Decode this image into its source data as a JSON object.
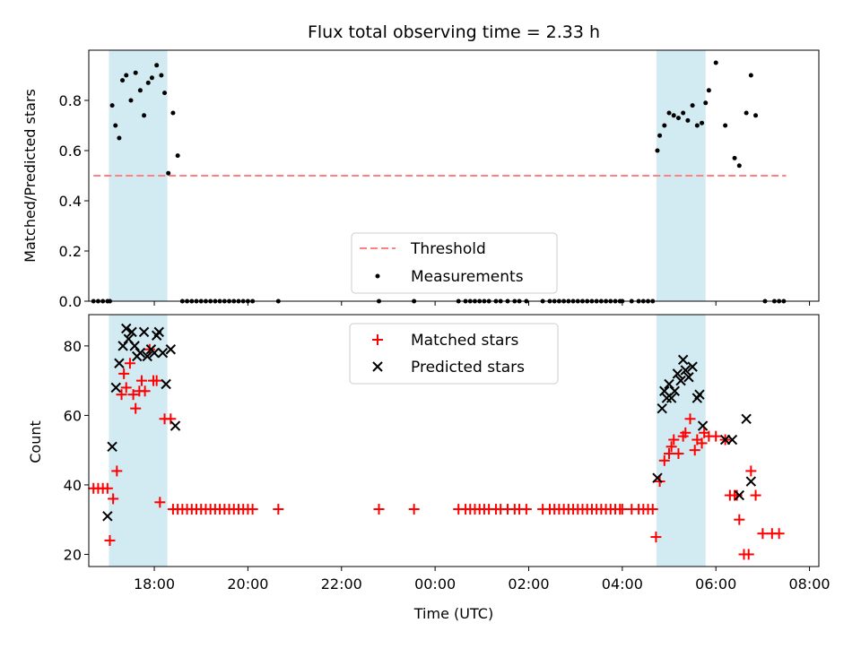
{
  "figure": {
    "title": "Flux total observing time = 2.33 h"
  },
  "chart_data": [
    {
      "type": "scatter",
      "panel": "top",
      "ylabel": "Matched/Predicted stars",
      "xlabel": "",
      "xlim": [
        16.6,
        32.2
      ],
      "ylim": [
        0,
        1.0
      ],
      "yticks": [
        0.0,
        0.2,
        0.4,
        0.6,
        0.8
      ],
      "ytick_labels": [
        "0.0",
        "0.2",
        "0.4",
        "0.6",
        "0.8"
      ],
      "highlight_regions": [
        [
          17.03,
          18.28
        ],
        [
          28.73,
          29.78
        ]
      ],
      "highlight_color": "#add8e6",
      "legend_position": "lower-center",
      "series": [
        {
          "name": "Threshold",
          "kind": "dashed-line",
          "color": "#ff8080",
          "x": [
            16.7,
            31.5
          ],
          "y": [
            0.5,
            0.5
          ]
        },
        {
          "name": "Measurements",
          "kind": "dot",
          "color": "#000000",
          "x": [
            16.7,
            16.8,
            16.9,
            17.0,
            17.05,
            17.1,
            17.17,
            17.25,
            17.32,
            17.4,
            17.5,
            17.6,
            17.7,
            17.78,
            17.87,
            17.95,
            18.05,
            18.15,
            18.22,
            18.3,
            18.4,
            18.5,
            18.6,
            18.7,
            18.8,
            18.9,
            19.0,
            19.1,
            19.2,
            19.3,
            19.4,
            19.5,
            19.6,
            19.7,
            19.8,
            19.9,
            20.0,
            20.1,
            20.65,
            22.8,
            23.55,
            24.5,
            24.65,
            24.75,
            24.85,
            24.95,
            25.05,
            25.15,
            25.3,
            25.4,
            25.55,
            25.7,
            25.8,
            25.95,
            26.3,
            26.45,
            26.55,
            26.65,
            26.75,
            26.85,
            26.95,
            27.05,
            27.15,
            27.25,
            27.35,
            27.45,
            27.55,
            27.65,
            27.75,
            27.85,
            27.95,
            28.0,
            28.2,
            28.35,
            28.45,
            28.55,
            28.65,
            28.75,
            28.8,
            28.9,
            29.0,
            29.1,
            29.2,
            29.3,
            29.4,
            29.5,
            29.6,
            29.7,
            29.78,
            29.85,
            30.0,
            30.2,
            30.4,
            30.5,
            30.65,
            30.75,
            30.85,
            31.05,
            31.25,
            31.35,
            31.45
          ],
          "y": [
            0.0,
            0.0,
            0.0,
            0.0,
            0.0,
            0.78,
            0.7,
            0.65,
            0.88,
            0.9,
            0.8,
            0.91,
            0.84,
            0.74,
            0.87,
            0.89,
            0.94,
            0.9,
            0.83,
            0.51,
            0.75,
            0.58,
            0.0,
            0.0,
            0.0,
            0.0,
            0.0,
            0.0,
            0.0,
            0.0,
            0.0,
            0.0,
            0.0,
            0.0,
            0.0,
            0.0,
            0.0,
            0.0,
            0.0,
            0.0,
            0.0,
            0.0,
            0.0,
            0.0,
            0.0,
            0.0,
            0.0,
            0.0,
            0.0,
            0.0,
            0.0,
            0.0,
            0.0,
            0.0,
            0.0,
            0.0,
            0.0,
            0.0,
            0.0,
            0.0,
            0.0,
            0.0,
            0.0,
            0.0,
            0.0,
            0.0,
            0.0,
            0.0,
            0.0,
            0.0,
            0.0,
            0.0,
            0.0,
            0.0,
            0.0,
            0.0,
            0.0,
            0.6,
            0.66,
            0.7,
            0.75,
            0.74,
            0.73,
            0.75,
            0.72,
            0.78,
            0.7,
            0.71,
            0.79,
            0.84,
            0.95,
            0.7,
            0.57,
            0.54,
            0.75,
            0.9,
            0.74,
            0.0,
            0.0,
            0.0,
            0.0
          ]
        }
      ]
    },
    {
      "type": "scatter",
      "panel": "bottom",
      "xlabel": "Time (UTC)",
      "ylabel": "Count",
      "xlim": [
        16.6,
        32.2
      ],
      "ylim": [
        16.5,
        89
      ],
      "yticks": [
        20,
        40,
        60,
        80
      ],
      "ytick_labels": [
        "20",
        "40",
        "60",
        "80"
      ],
      "xticks": [
        18,
        20,
        22,
        24,
        26,
        28,
        30,
        32
      ],
      "xtick_labels": [
        "18:00",
        "20:00",
        "22:00",
        "00:00",
        "02:00",
        "04:00",
        "06:00",
        "08:00"
      ],
      "highlight_regions": [
        [
          17.03,
          18.28
        ],
        [
          28.73,
          29.78
        ]
      ],
      "highlight_color": "#add8e6",
      "legend_position": "upper-center",
      "series": [
        {
          "name": "Matched stars",
          "marker": "plus",
          "color": "#ff0000",
          "x": [
            16.7,
            16.8,
            16.9,
            17.0,
            17.05,
            17.12,
            17.2,
            17.3,
            17.35,
            17.4,
            17.48,
            17.55,
            17.6,
            17.68,
            17.73,
            17.8,
            17.9,
            17.98,
            18.05,
            18.12,
            18.22,
            18.35,
            18.4,
            18.5,
            18.6,
            18.7,
            18.8,
            18.9,
            19.0,
            19.1,
            19.2,
            19.3,
            19.4,
            19.5,
            19.6,
            19.7,
            19.8,
            19.9,
            20.0,
            20.1,
            20.65,
            22.8,
            23.55,
            24.5,
            24.65,
            24.75,
            24.85,
            24.95,
            25.05,
            25.15,
            25.3,
            25.4,
            25.55,
            25.7,
            25.8,
            25.95,
            26.3,
            26.45,
            26.55,
            26.65,
            26.75,
            26.85,
            26.95,
            27.05,
            27.15,
            27.25,
            27.35,
            27.45,
            27.55,
            27.65,
            27.75,
            27.85,
            27.95,
            28.0,
            28.2,
            28.35,
            28.45,
            28.55,
            28.65,
            28.72,
            28.8,
            28.9,
            29.0,
            29.05,
            29.1,
            29.2,
            29.3,
            29.35,
            29.45,
            29.55,
            29.6,
            29.7,
            29.75,
            29.85,
            30.0,
            30.2,
            30.3,
            30.4,
            30.45,
            30.5,
            30.6,
            30.7,
            30.75,
            30.85,
            31.0,
            31.2,
            31.35
          ],
          "y": [
            39,
            39,
            39,
            39,
            24,
            36,
            44,
            66,
            72,
            68,
            75,
            66,
            62,
            67,
            70,
            67,
            79,
            70,
            70,
            35,
            59,
            59,
            33,
            33,
            33,
            33,
            33,
            33,
            33,
            33,
            33,
            33,
            33,
            33,
            33,
            33,
            33,
            33,
            33,
            33,
            33,
            33,
            33,
            33,
            33,
            33,
            33,
            33,
            33,
            33,
            33,
            33,
            33,
            33,
            33,
            33,
            33,
            33,
            33,
            33,
            33,
            33,
            33,
            33,
            33,
            33,
            33,
            33,
            33,
            33,
            33,
            33,
            33,
            33,
            33,
            33,
            33,
            33,
            33,
            25,
            41,
            47,
            49,
            51,
            53,
            49,
            54,
            55,
            59,
            50,
            53,
            52,
            55,
            54,
            54,
            53,
            37,
            37,
            37,
            30,
            20,
            20,
            44,
            37,
            26,
            26,
            26
          ]
        },
        {
          "name": "Predicted stars",
          "marker": "x",
          "color": "#000000",
          "x": [
            17.0,
            17.1,
            17.18,
            17.25,
            17.33,
            17.4,
            17.45,
            17.52,
            17.58,
            17.63,
            17.7,
            17.78,
            17.85,
            17.93,
            18.0,
            18.05,
            18.1,
            18.18,
            18.25,
            18.35,
            18.45,
            28.75,
            28.85,
            28.9,
            28.95,
            29.0,
            29.05,
            29.12,
            29.18,
            29.25,
            29.3,
            29.35,
            29.42,
            29.5,
            29.6,
            29.65,
            29.72,
            30.2,
            30.35,
            30.5,
            30.65,
            30.75
          ],
          "y": [
            31,
            51,
            68,
            75,
            80,
            85,
            82,
            84,
            80,
            77,
            78,
            84,
            77,
            79,
            78,
            83,
            84,
            78,
            69,
            79,
            57,
            42,
            62,
            67,
            65,
            69,
            65,
            67,
            72,
            70,
            76,
            73,
            71,
            74,
            65,
            66,
            57,
            53,
            53,
            37,
            59,
            41
          ]
        }
      ]
    }
  ]
}
